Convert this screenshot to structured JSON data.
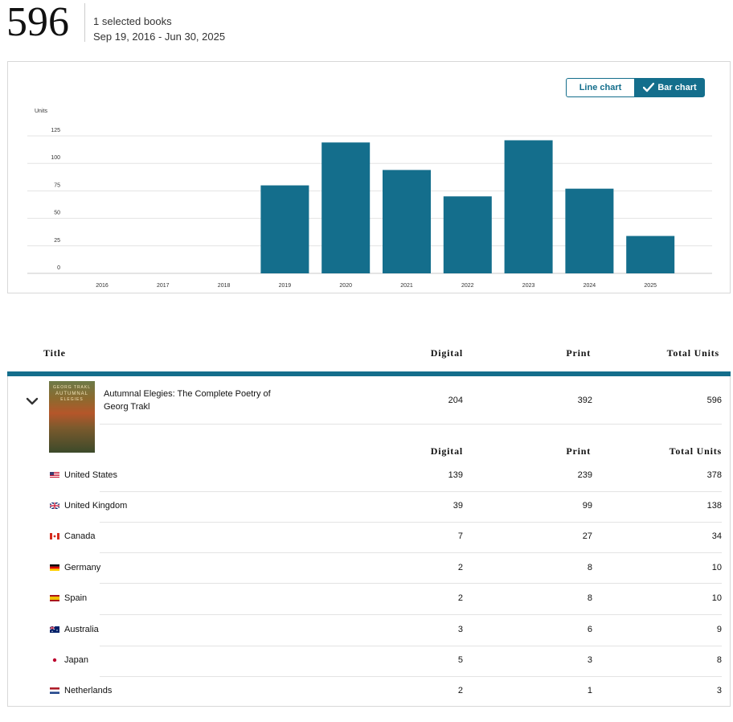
{
  "header": {
    "total_units": "596",
    "selected_label": "1 selected books",
    "date_range": "Sep 19, 2016 - Jun 30, 2025"
  },
  "chart_toggle": {
    "line_label": "Line chart",
    "bar_label": "Bar chart",
    "active": "bar"
  },
  "colors": {
    "accent": "#146e8c",
    "bar": "#146e8c",
    "gridline": "#e3e3e3"
  },
  "chart_data": {
    "type": "bar",
    "ylabel": "Units",
    "categories": [
      "2016",
      "2017",
      "2018",
      "2019",
      "2020",
      "2021",
      "2022",
      "2023",
      "2024",
      "2025"
    ],
    "values": [
      0,
      0,
      0,
      80,
      119,
      94,
      70,
      121,
      77,
      34
    ],
    "yticks": [
      0,
      25,
      50,
      75,
      100,
      125
    ],
    "ylim": [
      0,
      125
    ],
    "grid": true
  },
  "table": {
    "headers": {
      "title": "Title",
      "digital": "Digital",
      "print": "Print",
      "total": "Total Units"
    },
    "book": {
      "cover_text_top": "GEORG TRAKL",
      "cover_text_mid": "AUTUMNAL",
      "cover_text_low": "ELEGIES",
      "title": "Autumnal Elegies: The Complete Poetry of Georg Trakl",
      "digital": "204",
      "print": "392",
      "total": "596"
    },
    "sub_headers": {
      "digital": "Digital",
      "print": "Print",
      "total": "Total Units"
    },
    "rows": [
      {
        "country": "United States",
        "flag": "us-flag-icon",
        "digital": "139",
        "print": "239",
        "total": "378"
      },
      {
        "country": "United Kingdom",
        "flag": "uk-flag-icon",
        "digital": "39",
        "print": "99",
        "total": "138"
      },
      {
        "country": "Canada",
        "flag": "canada-flag-icon",
        "digital": "7",
        "print": "27",
        "total": "34"
      },
      {
        "country": "Germany",
        "flag": "germany-flag-icon",
        "digital": "2",
        "print": "8",
        "total": "10"
      },
      {
        "country": "Spain",
        "flag": "spain-flag-icon",
        "digital": "2",
        "print": "8",
        "total": "10"
      },
      {
        "country": "Australia",
        "flag": "australia-flag-icon",
        "digital": "3",
        "print": "6",
        "total": "9"
      },
      {
        "country": "Japan",
        "flag": "japan-flag-icon",
        "digital": "5",
        "print": "3",
        "total": "8"
      },
      {
        "country": "Netherlands",
        "flag": "netherlands-flag-icon",
        "digital": "2",
        "print": "1",
        "total": "3"
      }
    ]
  }
}
